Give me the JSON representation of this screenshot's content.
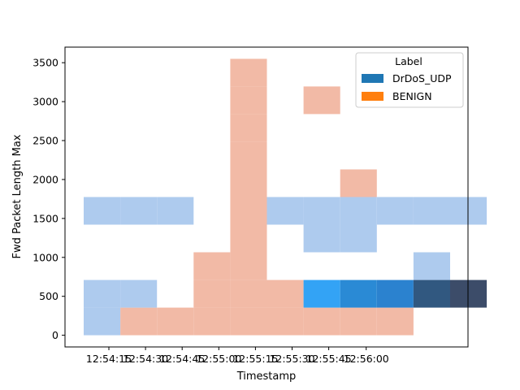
{
  "chart_data": {
    "type": "heatmap",
    "title": "",
    "xlabel": "Timestamp",
    "ylabel": "Fwd Packet Length Max",
    "x_ticks": [
      "12:54:15",
      "12:54:30",
      "12:54:45",
      "12:55:00",
      "12:55:15",
      "12:55:30",
      "12:55:45",
      "12:56:00"
    ],
    "y_ticks": [
      0,
      500,
      1000,
      1500,
      2000,
      2500,
      3000,
      3500
    ],
    "ylim": [
      -150,
      3700
    ],
    "x_bin_edges": [
      "12:54:10",
      "12:54:25",
      "12:54:40",
      "12:54:55",
      "12:55:10",
      "12:55:25",
      "12:55:40",
      "12:55:55",
      "12:56:10"
    ],
    "y_bin_edges": [
      0,
      355,
      710,
      1065,
      1420,
      1775,
      2130,
      2485,
      2840,
      3195,
      3550
    ],
    "legend": {
      "title": "Label",
      "entries": [
        {
          "name": "DrDoS_UDP",
          "color": "#1f77b4"
        },
        {
          "name": "BENIGN",
          "color": "#ff7f0e"
        }
      ],
      "placement": "upper right"
    },
    "series": [
      {
        "name": "BENIGN",
        "color": "#f2baa6",
        "cells": [
          {
            "xbin": 1,
            "ybin": 0,
            "intensity": 0.3
          },
          {
            "xbin": 2,
            "ybin": 0,
            "intensity": 0.3
          },
          {
            "xbin": 3,
            "ybin": 0,
            "intensity": 0.3
          },
          {
            "xbin": 4,
            "ybin": 0,
            "intensity": 0.3
          },
          {
            "xbin": 5,
            "ybin": 0,
            "intensity": 0.3
          },
          {
            "xbin": 6,
            "ybin": 0,
            "intensity": 0.3
          },
          {
            "xbin": 7,
            "ybin": 0,
            "intensity": 0.3
          },
          {
            "xbin": 8,
            "ybin": 0,
            "intensity": 0.3
          },
          {
            "xbin": 3,
            "ybin": 1,
            "intensity": 0.3
          },
          {
            "xbin": 4,
            "ybin": 1,
            "intensity": 0.3
          },
          {
            "xbin": 5,
            "ybin": 1,
            "intensity": 0.3
          },
          {
            "xbin": 3,
            "ybin": 2,
            "intensity": 0.3
          },
          {
            "xbin": 4,
            "ybin": 2,
            "intensity": 0.3
          },
          {
            "xbin": 4,
            "ybin": 3,
            "intensity": 0.3
          },
          {
            "xbin": 4,
            "ybin": 4,
            "intensity": 0.3
          },
          {
            "xbin": 4,
            "ybin": 5,
            "intensity": 0.3
          },
          {
            "xbin": 7,
            "ybin": 5,
            "intensity": 0.3
          },
          {
            "xbin": 4,
            "ybin": 6,
            "intensity": 0.3
          },
          {
            "xbin": 4,
            "ybin": 7,
            "intensity": 0.3
          },
          {
            "xbin": 4,
            "ybin": 8,
            "intensity": 0.3
          },
          {
            "xbin": 6,
            "ybin": 8,
            "intensity": 0.3
          },
          {
            "xbin": 4,
            "ybin": 9,
            "intensity": 0.3
          }
        ]
      },
      {
        "name": "DrDoS_UDP",
        "color": "#aecbee",
        "cells": [
          {
            "xbin": 0,
            "ybin": 0,
            "intensity": 0.3,
            "color": "#aecbee"
          },
          {
            "xbin": 0,
            "ybin": 1,
            "intensity": 0.3,
            "color": "#aecbee"
          },
          {
            "xbin": 1,
            "ybin": 1,
            "intensity": 0.3,
            "color": "#aecbee"
          },
          {
            "xbin": 6,
            "ybin": 1,
            "intensity": 0.6,
            "color": "#33a3f5"
          },
          {
            "xbin": 7,
            "ybin": 1,
            "intensity": 0.7,
            "color": "#2a8ad5"
          },
          {
            "xbin": 8,
            "ybin": 1,
            "intensity": 0.75,
            "color": "#2b82cf"
          },
          {
            "xbin": 9,
            "ybin": 1,
            "intensity": 0.85,
            "color": "#315880"
          },
          {
            "xbin": 10,
            "ybin": 1,
            "intensity": 1.0,
            "color": "#3c4c69"
          },
          {
            "xbin": 9,
            "ybin": 2,
            "intensity": 0.3,
            "color": "#aecbee"
          },
          {
            "xbin": 6,
            "ybin": 3,
            "intensity": 0.3,
            "color": "#aecbee"
          },
          {
            "xbin": 7,
            "ybin": 3,
            "intensity": 0.3,
            "color": "#aecbee"
          },
          {
            "xbin": 0,
            "ybin": 4,
            "intensity": 0.3,
            "color": "#aecbee"
          },
          {
            "xbin": 1,
            "ybin": 4,
            "intensity": 0.3,
            "color": "#aecbee"
          },
          {
            "xbin": 2,
            "ybin": 4,
            "intensity": 0.3,
            "color": "#aecbee"
          },
          {
            "xbin": 5,
            "ybin": 4,
            "intensity": 0.3,
            "color": "#aecbee"
          },
          {
            "xbin": 6,
            "ybin": 4,
            "intensity": 0.3,
            "color": "#aecbee"
          },
          {
            "xbin": 7,
            "ybin": 4,
            "intensity": 0.3,
            "color": "#aecbee"
          },
          {
            "xbin": 8,
            "ybin": 4,
            "intensity": 0.3,
            "color": "#aecbee"
          },
          {
            "xbin": 9,
            "ybin": 4,
            "intensity": 0.3,
            "color": "#aecbee"
          },
          {
            "xbin": 10,
            "ybin": 4,
            "intensity": 0.3,
            "color": "#aecbee"
          }
        ]
      }
    ],
    "grid": false
  }
}
